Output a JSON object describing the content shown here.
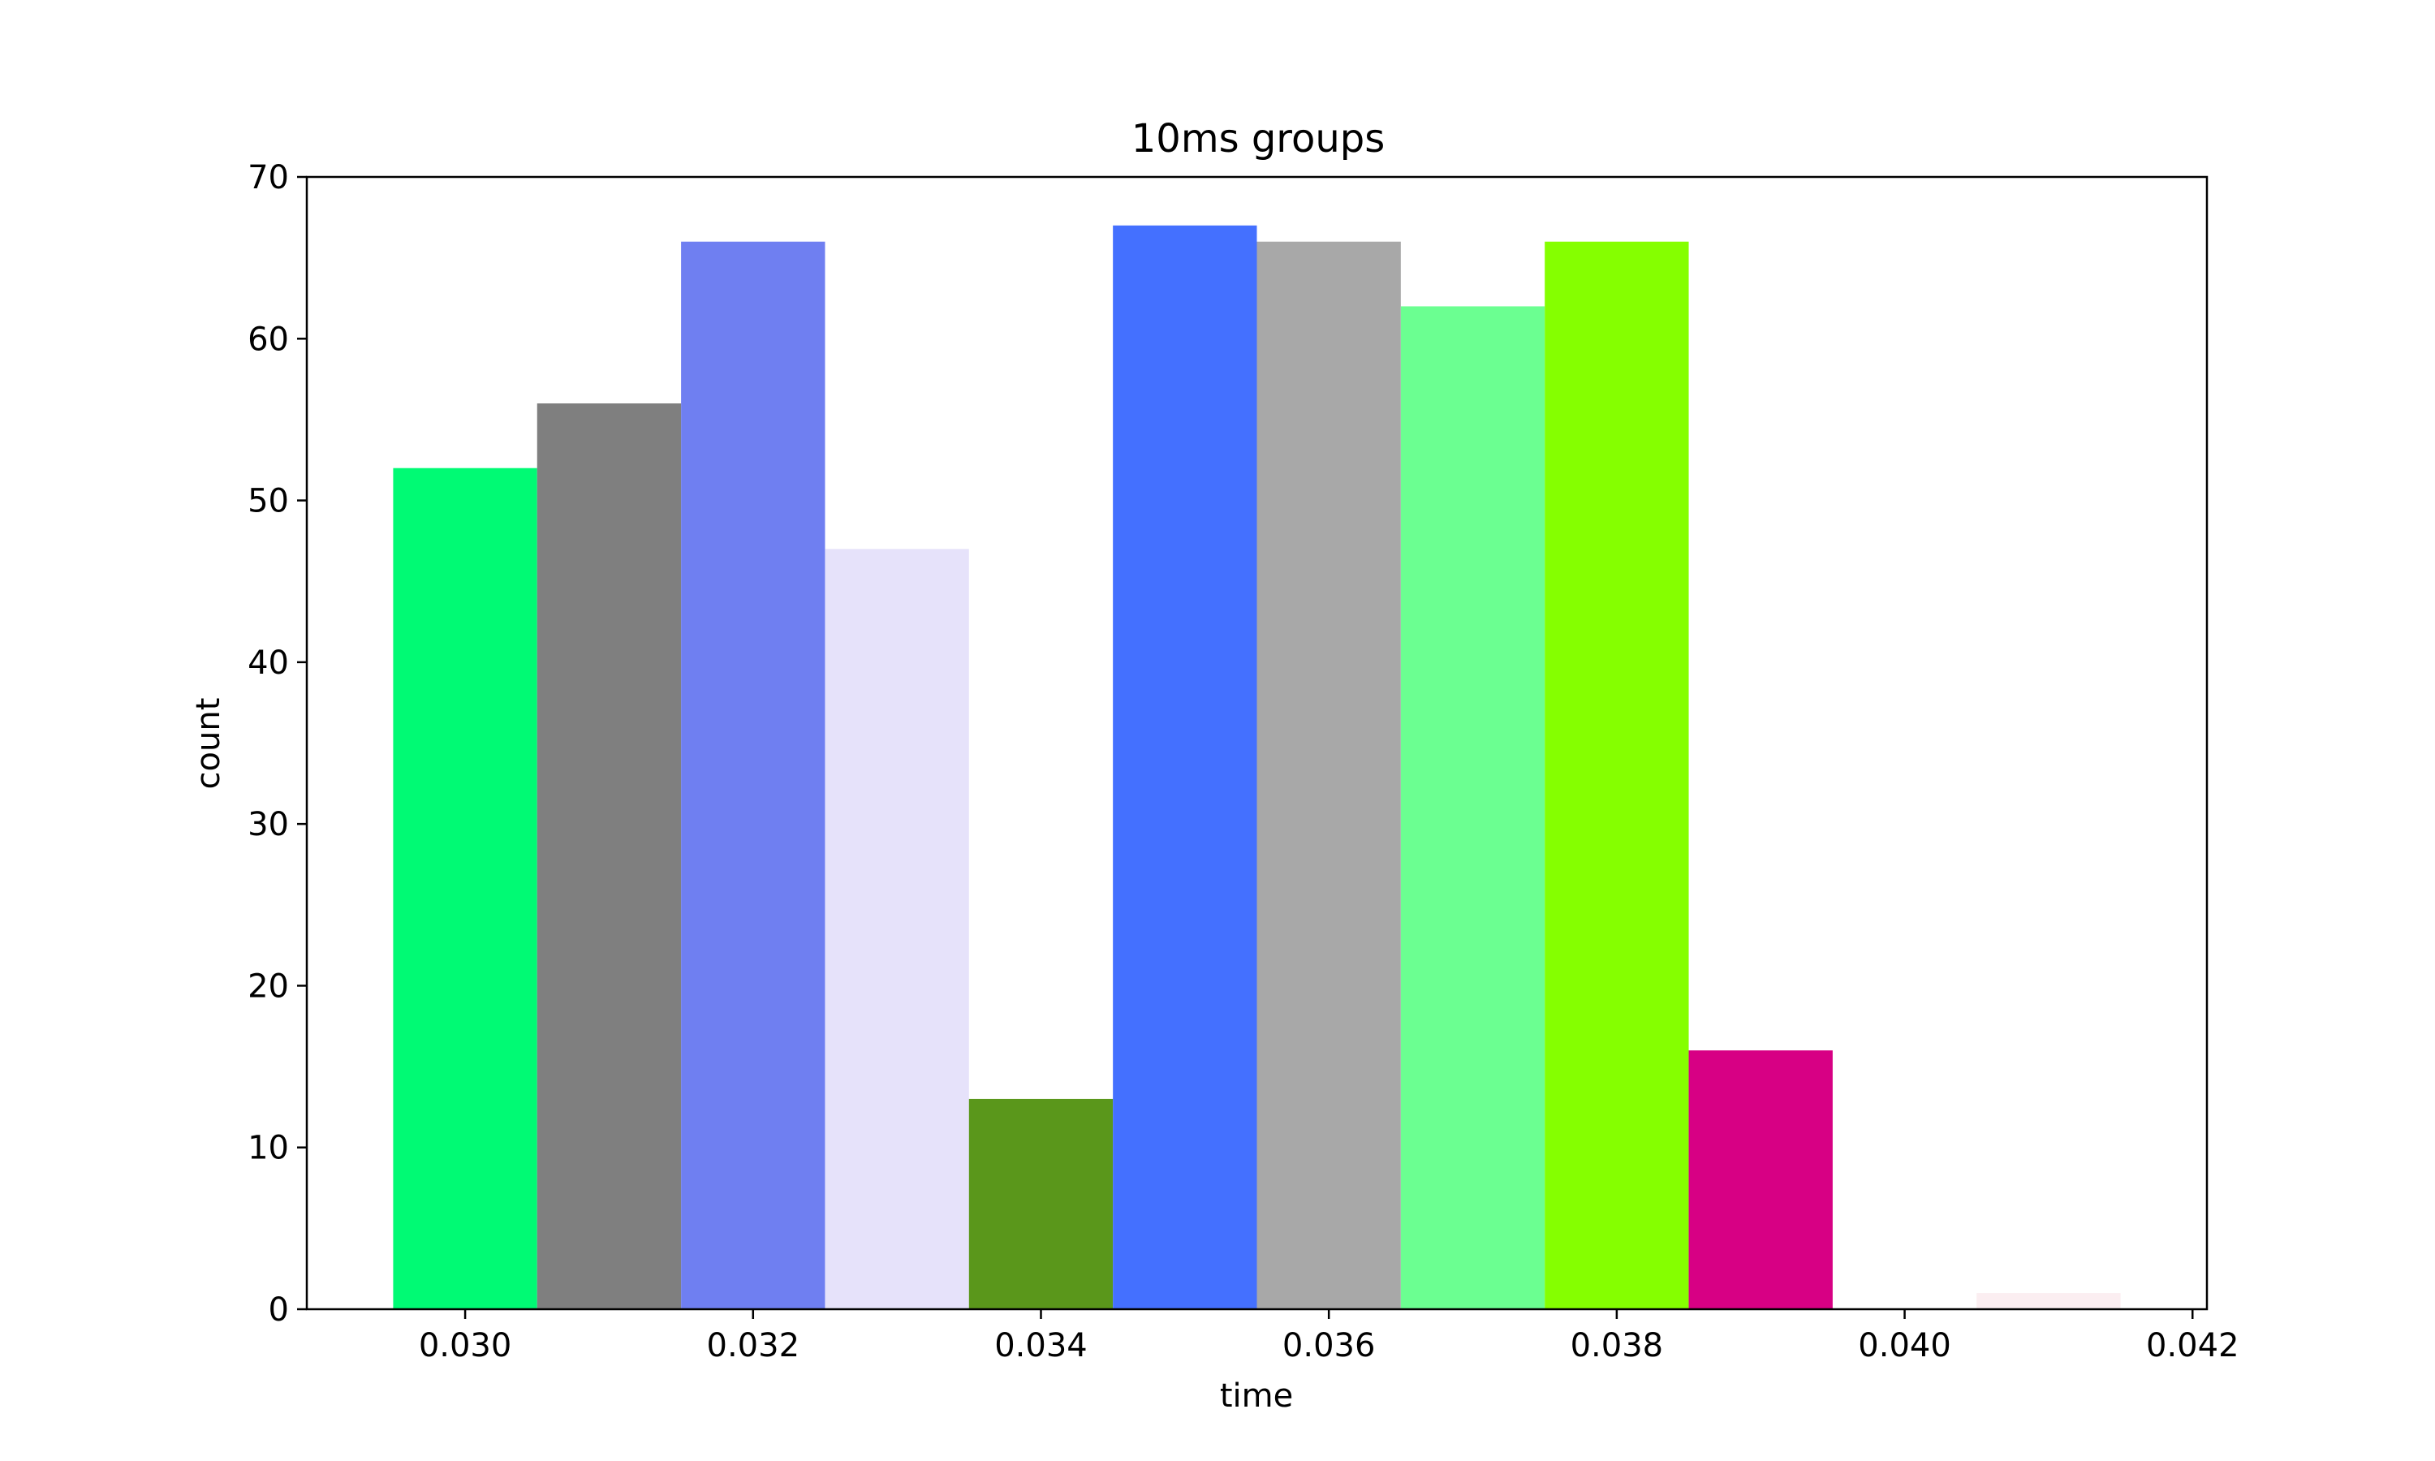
{
  "chart_data": {
    "type": "bar",
    "title": "10ms groups",
    "xlabel": "time",
    "ylabel": "count",
    "xlim": [
      0.0289,
      0.0421
    ],
    "ylim": [
      0,
      70
    ],
    "bar_width": 0.001,
    "grid": false,
    "series": [
      {
        "x": [
          0.03,
          0.031,
          0.032,
          0.033,
          0.034,
          0.035,
          0.036,
          0.037,
          0.038,
          0.039,
          0.04,
          0.041
        ],
        "values": [
          52,
          56,
          66,
          47,
          13,
          67,
          66,
          62,
          66,
          16,
          0,
          1
        ],
        "colors": [
          "#00fa74",
          "#7f7f7f",
          "#6f7ff1",
          "#e6e2fa",
          "#5a971b",
          "#4470ff",
          "#a8a8a8",
          "#6bff91",
          "#85ff00",
          "#d70084",
          "#ffffff",
          "#fbeef1"
        ]
      }
    ],
    "x_ticks": [
      "0.030",
      "0.032",
      "0.034",
      "0.036",
      "0.038",
      "0.040",
      "0.042"
    ],
    "x_tick_values": [
      0.03,
      0.032,
      0.034,
      0.036,
      0.038,
      0.04,
      0.042
    ],
    "y_ticks": [
      "0",
      "10",
      "20",
      "30",
      "40",
      "50",
      "60",
      "70"
    ],
    "y_tick_values": [
      0,
      10,
      20,
      30,
      40,
      50,
      60,
      70
    ]
  }
}
